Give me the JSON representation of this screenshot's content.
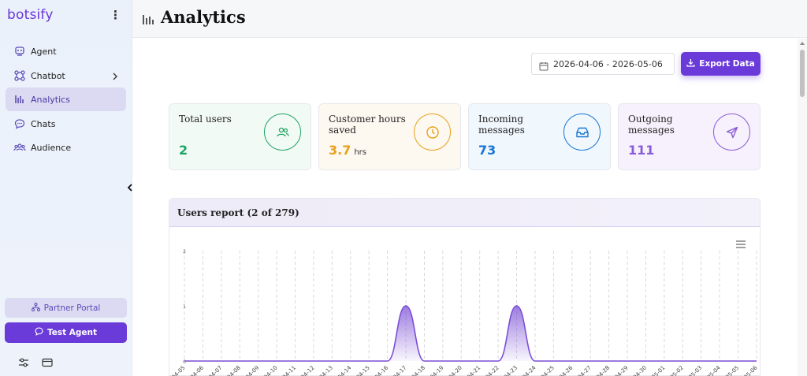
{
  "sidebar": {
    "logo": "botsify",
    "menu_icon": "kebab-icon",
    "items": [
      {
        "label": "Agent",
        "icon": "agent-icon"
      },
      {
        "label": "Chatbot",
        "icon": "chatbot-icon"
      },
      {
        "label": "Analytics",
        "icon": "analytics-icon",
        "active": true
      },
      {
        "label": "Chats",
        "icon": "chats-icon"
      },
      {
        "label": "Audience",
        "icon": "audience-icon"
      }
    ],
    "partner_portal": "Partner Portal",
    "test_agent": "Test Agent"
  },
  "header": {
    "title": "Analytics"
  },
  "toolbar": {
    "date_range": "2026-04-06 - 2026-05-06",
    "export_label": "Export Data"
  },
  "stats": [
    {
      "label": "Total users",
      "value": "2",
      "unit": "",
      "color": "#1fa463",
      "icon": "users-icon"
    },
    {
      "label": "Customer hours saved",
      "value": "3.7",
      "unit": "hrs",
      "color": "#e8a11a",
      "icon": "clock-icon"
    },
    {
      "label": "Incoming messages",
      "value": "73",
      "unit": "",
      "color": "#1976d2",
      "icon": "inbox-icon"
    },
    {
      "label": "Outgoing messages",
      "value": "111",
      "unit": "",
      "color": "#8a5cd8",
      "icon": "send-icon"
    }
  ],
  "report": {
    "title": "Users report (2 of 279)"
  },
  "colors": {
    "accent": "#6b3bd9",
    "series": "#7b4fd6"
  },
  "chart_data": {
    "type": "area",
    "title": "",
    "xlabel": "",
    "ylabel": "",
    "ylim": [
      0,
      2
    ],
    "yticks": [
      "0",
      "1",
      "2"
    ],
    "categories": [
      "04-05",
      "04-06",
      "04-07",
      "04-08",
      "04-09",
      "04-10",
      "04-11",
      "04-12",
      "04-13",
      "04-14",
      "04-15",
      "04-16",
      "04-17",
      "04-18",
      "04-19",
      "04-20",
      "04-21",
      "04-22",
      "04-23",
      "04-24",
      "04-25",
      "04-26",
      "04-27",
      "04-28",
      "04-29",
      "04-30",
      "05-01",
      "05-02",
      "05-03",
      "05-04",
      "05-05",
      "05-06"
    ],
    "values": [
      0,
      0,
      0,
      0,
      0,
      0,
      0,
      0,
      0,
      0,
      0,
      0,
      1,
      0,
      0,
      0,
      0,
      0,
      1,
      0,
      0,
      0,
      0,
      0,
      0,
      0,
      0,
      0,
      0,
      0,
      0,
      0
    ],
    "grid": "vertical dashed"
  }
}
